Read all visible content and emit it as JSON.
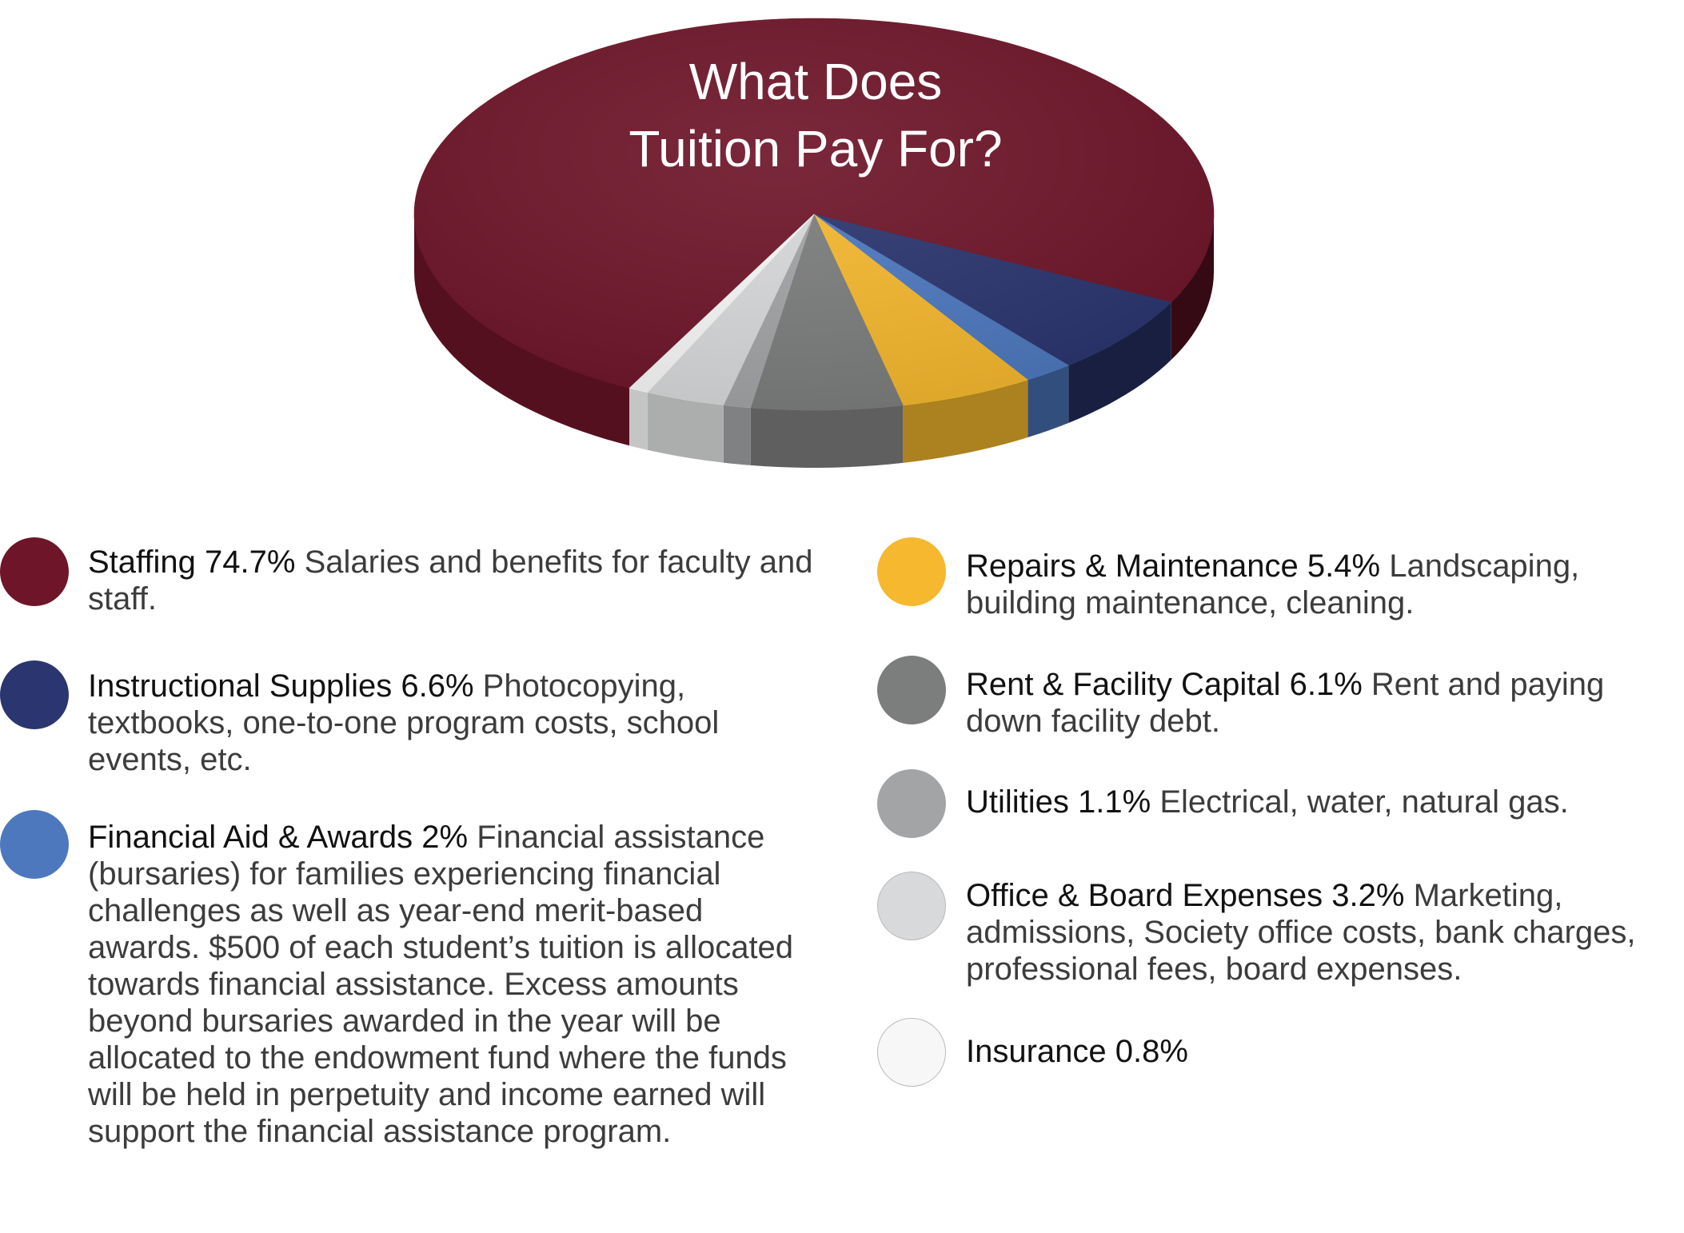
{
  "chart_data": {
    "type": "pie",
    "title": "What Does Tuition Pay For?",
    "title_lines": [
      "What Does",
      "Tuition Pay For?"
    ],
    "unit": "%",
    "slices": [
      {
        "name": "Staffing",
        "value": 74.7,
        "label": "74.7%",
        "color": "#6e1529",
        "description": "Salaries and benefits for faculty and staff."
      },
      {
        "name": "Instructional Supplies",
        "value": 6.6,
        "label": "6.6%",
        "color": "#2b356f",
        "description": "Photocopying, textbooks, one-to-one program costs, school events, etc."
      },
      {
        "name": "Financial Aid & Awards",
        "value": 2,
        "label": "2%",
        "color": "#4d78be",
        "description": "Financial assistance (bursaries) for families experiencing financial challenges as well as year-end merit-based awards. $500 of each student’s tuition is allocated towards financial assistance. Excess amounts beyond bursaries awarded in the year will be allocated to the endowment fund where the funds will be held in perpetuity and income earned will support the financial assistance program."
      },
      {
        "name": "Repairs & Maintenance",
        "value": 5.4,
        "label": "5.4%",
        "color": "#f5b82e",
        "description": "Landscaping, building maintenance, cleaning."
      },
      {
        "name": "Rent & Facility Capital",
        "value": 6.1,
        "label": "6.1%",
        "color": "#7c7d7d",
        "description": "Rent and paying down facility debt."
      },
      {
        "name": "Utilities",
        "value": 1.1,
        "label": "1.1%",
        "color": "#a3a4a6",
        "description": "Electrical, water, natural gas."
      },
      {
        "name": "Office & Board Expenses",
        "value": 3.2,
        "label": "3.2%",
        "color": "#d8d9da",
        "description": "Marketing, admissions, Society office costs, bank charges, professional fees, board expenses."
      },
      {
        "name": "Insurance",
        "value": 0.8,
        "label": "0.8%",
        "color": "#f7f7f7",
        "description": ""
      }
    ]
  }
}
